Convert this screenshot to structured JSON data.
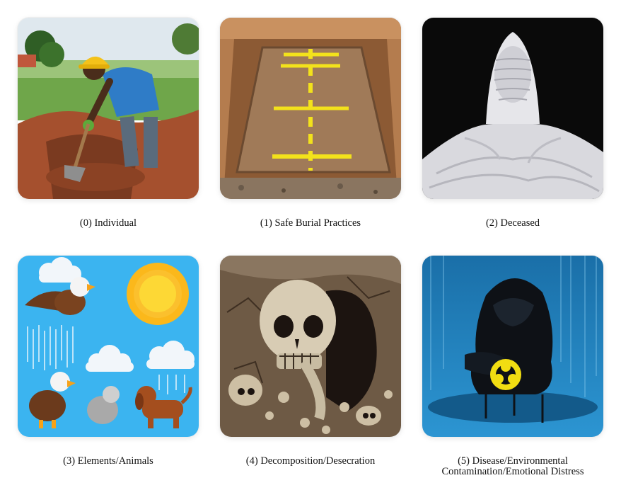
{
  "panels": [
    {
      "id": "individual",
      "caption": "(0) Individual",
      "image_subject": "Worker in yellow hard hat digging a grave pit with a shovel",
      "colors": {
        "sky": "#dfe8ee",
        "grass": "#6fa64a",
        "soil": "#a5502e",
        "shirt": "#2f7cc7",
        "helmet": "#f4c21a"
      }
    },
    {
      "id": "safe-burial",
      "caption": "(1) Safe Burial Practices",
      "image_subject": "Rectangular excavated grave with yellow measurement markings",
      "colors": {
        "soil": "#b47c4e",
        "slab": "#a07a58",
        "marks": "#f3e21b"
      }
    },
    {
      "id": "deceased",
      "caption": "(2) Deceased",
      "image_subject": "Figure wrapped in a white shroud against black background",
      "colors": {
        "background": "#0a0a0a",
        "shroud": "#e6e6ea"
      }
    },
    {
      "id": "elements-animals",
      "caption": "(3) Elements/Animals",
      "image_subject": "Cartoon sun, rain clouds, eagles and dogs on blue sky",
      "colors": {
        "sky": "#3bb4f0",
        "sun": "#fbc02d",
        "cloud": "#f2f6fa",
        "eagle": "#6b3a1c",
        "dog": "#a44e1e"
      }
    },
    {
      "id": "decomposition",
      "caption": "(4) Decomposition/Desecration",
      "image_subject": "Cracked earth with a large skull and bones",
      "colors": {
        "earth": "#6e5a45",
        "bone": "#d8ccb4",
        "shadow": "#1c1410"
      }
    },
    {
      "id": "disease",
      "caption": "(5) Disease/Environmental Contamination/Emotional Distress",
      "image_subject": "Hooded figure sitting in blue water with biohazard symbol",
      "colors": {
        "background": "#1f7fbe",
        "figure": "#0e1116",
        "biohazard": "#f1dd12"
      }
    }
  ]
}
